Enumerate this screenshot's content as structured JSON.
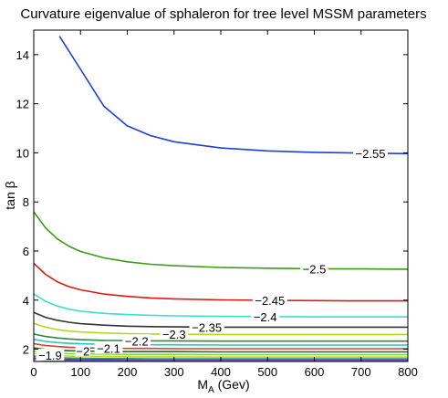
{
  "chart_data": {
    "type": "line",
    "title": "Curvature eigenvalue of sphaleron for tree level MSSM parameters",
    "xlabel_main": "M",
    "xlabel_sub": "A",
    "xlabel_unit": " (Gev)",
    "ylabel": "tan β",
    "xlim": [
      0,
      800
    ],
    "ylim": [
      1.5,
      15
    ],
    "xticks": [
      0,
      100,
      200,
      300,
      400,
      500,
      600,
      700,
      800
    ],
    "yticks": [
      2,
      4,
      6,
      8,
      10,
      12,
      14
    ],
    "grid": false,
    "legend": "none",
    "x": [
      0,
      25,
      50,
      75,
      100,
      150,
      200,
      250,
      300,
      400,
      500,
      600,
      700,
      800
    ],
    "series": [
      {
        "label": "-2.55",
        "color": "#1f3fd6",
        "label_at": 720,
        "values": [
          null,
          null,
          null,
          null,
          13.4,
          11.9,
          11.1,
          10.7,
          10.45,
          10.2,
          10.08,
          10.02,
          9.99,
          9.97
        ]
      },
      {
        "label": "-2.5",
        "color": "#3e9b12",
        "label_at": 600,
        "values": [
          7.6,
          6.95,
          6.5,
          6.2,
          5.98,
          5.72,
          5.56,
          5.46,
          5.4,
          5.33,
          5.3,
          5.28,
          5.27,
          5.26
        ]
      },
      {
        "label": "-2.45",
        "color": "#d81c10",
        "label_at": 505,
        "values": [
          5.5,
          5.05,
          4.75,
          4.55,
          4.42,
          4.25,
          4.15,
          4.09,
          4.05,
          4.01,
          3.99,
          3.98,
          3.97,
          3.97
        ]
      },
      {
        "label": "-2.4",
        "color": "#3ee0c4",
        "label_at": 495,
        "values": [
          4.25,
          3.95,
          3.76,
          3.63,
          3.55,
          3.46,
          3.41,
          3.38,
          3.36,
          3.34,
          3.33,
          3.32,
          3.32,
          3.32
        ]
      },
      {
        "label": "-2.35",
        "color": "#333333",
        "label_at": 370,
        "values": [
          3.5,
          3.3,
          3.18,
          3.1,
          3.04,
          2.98,
          2.94,
          2.92,
          2.91,
          2.9,
          2.9,
          2.9,
          2.9,
          2.9
        ]
      },
      {
        "label": "-2.3",
        "color": "#b8d41a",
        "label_at": 300,
        "values": [
          3.05,
          2.9,
          2.8,
          2.74,
          2.7,
          2.66,
          2.63,
          2.62,
          2.61,
          2.6,
          2.6,
          2.6,
          2.6,
          2.6
        ]
      },
      {
        "label": "-2.2",
        "color": "#2b8c3a",
        "label_at": 220,
        "values": [
          2.62,
          2.52,
          2.46,
          2.42,
          2.39,
          2.36,
          2.35,
          2.34,
          2.34,
          2.33,
          2.33,
          2.33,
          2.33,
          2.33
        ]
      },
      {
        "label": "",
        "color": "#27c1cf",
        "label_at": null,
        "values": [
          2.4,
          2.32,
          2.27,
          2.24,
          2.22,
          2.2,
          2.19,
          2.18,
          2.18,
          2.17,
          2.17,
          2.17,
          2.17,
          2.17
        ]
      },
      {
        "label": "-2.1",
        "color": "#e63b2a",
        "label_at": 160,
        "values": [
          2.22,
          2.15,
          2.11,
          2.08,
          2.06,
          2.04,
          2.03,
          2.03,
          2.02,
          2.02,
          2.02,
          2.02,
          2.02,
          2.02
        ]
      },
      {
        "label": "-2",
        "color": "#1d6e1d",
        "label_at": 105,
        "values": [
          2.05,
          1.99,
          1.96,
          1.94,
          1.93,
          1.91,
          1.9,
          1.9,
          1.9,
          1.89,
          1.89,
          1.89,
          1.89,
          1.89
        ]
      },
      {
        "label": "",
        "color": "#7fd84a",
        "label_at": null,
        "values": [
          1.92,
          1.87,
          1.84,
          1.82,
          1.81,
          1.8,
          1.79,
          1.79,
          1.79,
          1.78,
          1.78,
          1.78,
          1.78,
          1.78
        ]
      },
      {
        "label": "-1.9",
        "color": "#c7d31a",
        "label_at": 35,
        "values": [
          1.82,
          1.77,
          1.74,
          1.72,
          1.71,
          1.7,
          1.69,
          1.69,
          1.69,
          1.68,
          1.68,
          1.68,
          1.68,
          1.68
        ]
      },
      {
        "label": "",
        "color": "#2e9c6c",
        "label_at": null,
        "values": [
          1.72,
          1.68,
          1.66,
          1.64,
          1.63,
          1.62,
          1.62,
          1.61,
          1.61,
          1.61,
          1.61,
          1.61,
          1.61,
          1.61
        ]
      },
      {
        "label": "",
        "color": "#1c3fd0",
        "label_at": null,
        "values": [
          1.64,
          1.61,
          1.59,
          1.58,
          1.57,
          1.57,
          1.56,
          1.56,
          1.56,
          1.56,
          1.56,
          1.56,
          1.56,
          1.56
        ]
      },
      {
        "label": "",
        "color": "#a14bd2",
        "label_at": null,
        "values": [
          1.57,
          1.55,
          1.54,
          1.53,
          1.53,
          1.53,
          1.53,
          1.53,
          1.53,
          1.53,
          1.53,
          1.53,
          1.53,
          1.53
        ]
      }
    ]
  }
}
